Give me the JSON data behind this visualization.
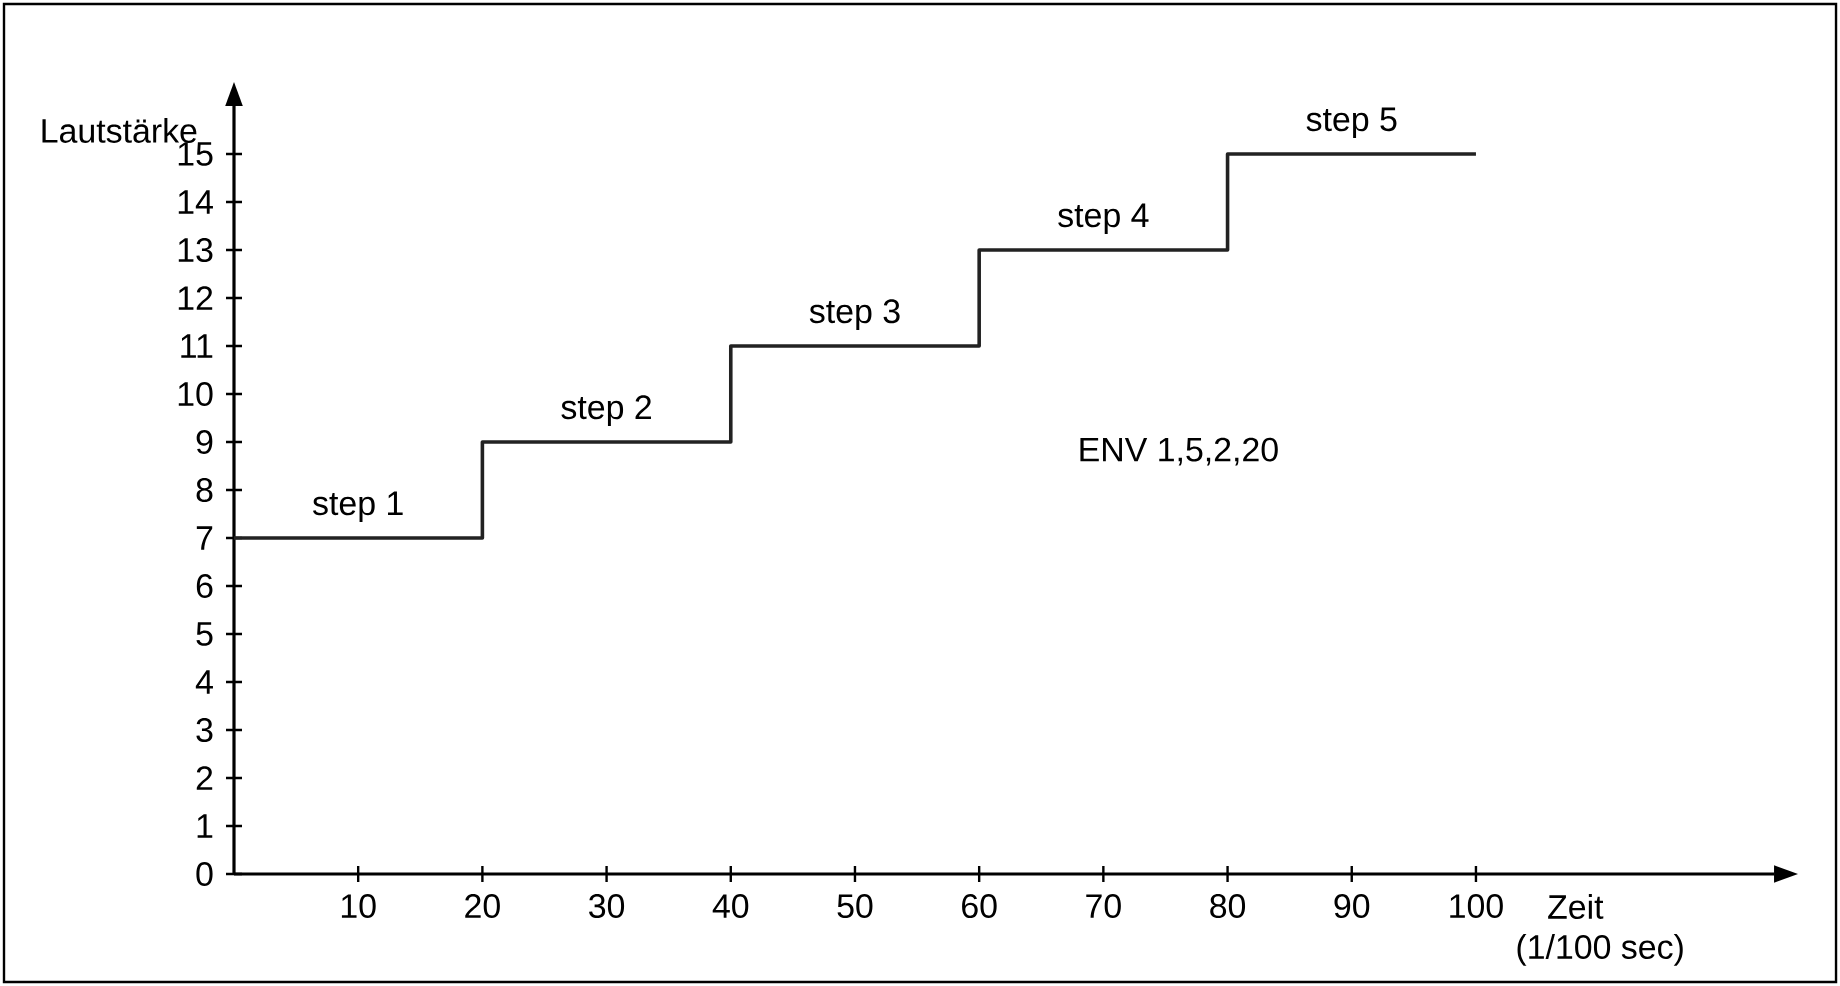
{
  "chart_data": {
    "type": "step",
    "x": [
      0,
      20,
      40,
      60,
      80,
      100
    ],
    "values": [
      7,
      9,
      11,
      13,
      15,
      15
    ],
    "color": "#222222",
    "xlabel": "Zeit",
    "ylabel": "Lautstärke",
    "xlim": [
      0,
      124
    ],
    "ylim": [
      0,
      16
    ],
    "xticks": [
      10,
      20,
      30,
      40,
      50,
      60,
      70,
      80,
      90,
      100
    ],
    "yticks": [
      0,
      1,
      2,
      3,
      4,
      5,
      6,
      7,
      8,
      9,
      10,
      11,
      12,
      13,
      14,
      15
    ],
    "annotations": [
      {
        "text": "step 1",
        "x": 10,
        "y": 7
      },
      {
        "text": "step 2",
        "x": 30,
        "y": 9
      },
      {
        "text": "step 3",
        "x": 50,
        "y": 11
      },
      {
        "text": "step 4",
        "x": 70,
        "y": 13
      },
      {
        "text": "step 5",
        "x": 90,
        "y": 15
      },
      "ENV 1,5,2,20",
      "(1/100 sec)"
    ],
    "grid": false
  }
}
